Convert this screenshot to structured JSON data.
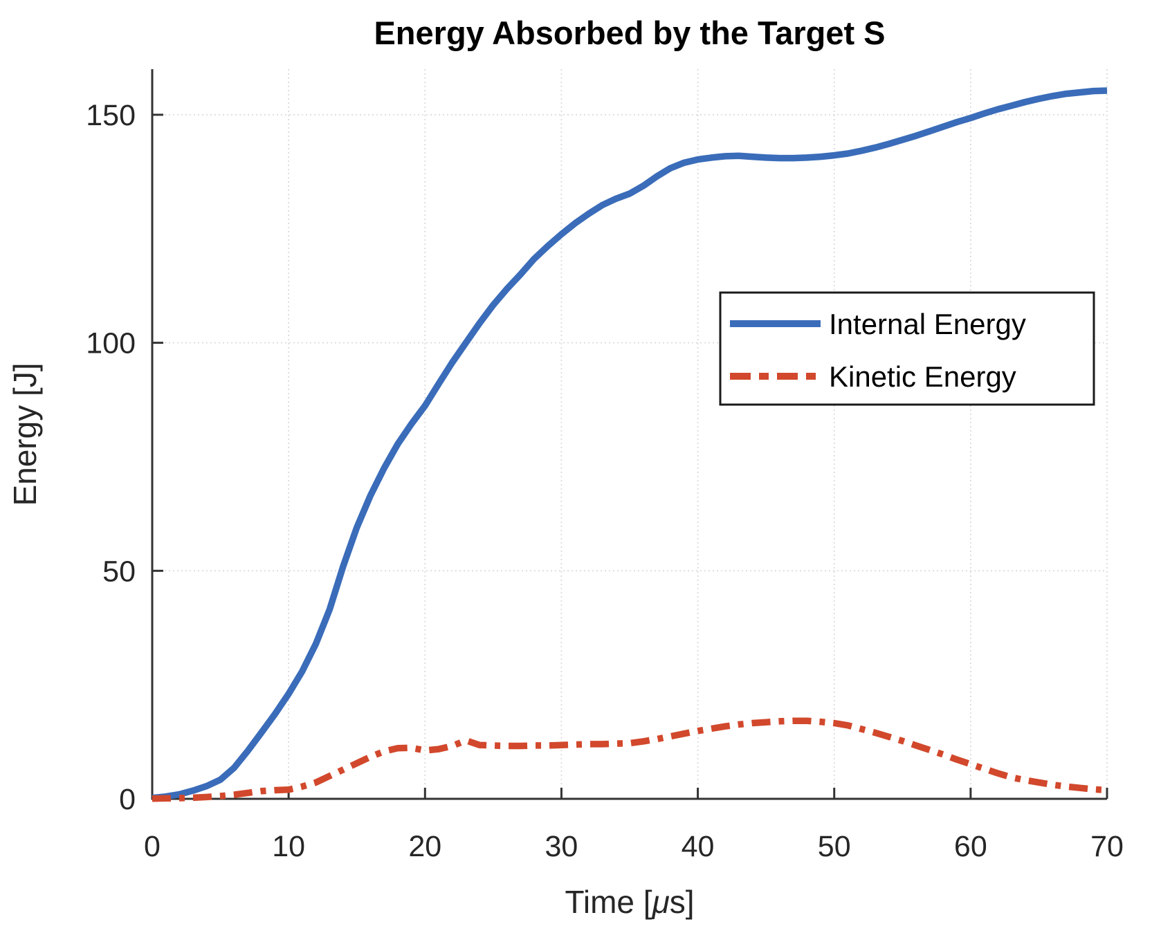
{
  "chart_data": {
    "type": "line",
    "title": "Energy Absorbed by the Target S",
    "xlabel": "Time [μs]",
    "ylabel": "Energy [J]",
    "xlim": [
      0,
      70
    ],
    "ylim": [
      0,
      160
    ],
    "x_ticks": [
      0,
      10,
      20,
      30,
      40,
      50,
      60,
      70
    ],
    "y_ticks": [
      0,
      50,
      100,
      150
    ],
    "grid": true,
    "grid_style": "dotted",
    "legend_position": "middle-right",
    "colors": {
      "internal": "#3A6CB9",
      "kinetic": "#D2482C",
      "axis": "#333333",
      "grid": "#d6d6d6",
      "legend_border": "#1a1a1a"
    },
    "x": [
      0,
      1,
      2,
      3,
      4,
      5,
      6,
      7,
      8,
      9,
      10,
      11,
      12,
      13,
      14,
      15,
      16,
      17,
      18,
      19,
      20,
      21,
      22,
      23,
      24,
      25,
      26,
      27,
      28,
      29,
      30,
      31,
      32,
      33,
      34,
      35,
      36,
      37,
      38,
      39,
      40,
      41,
      42,
      43,
      44,
      45,
      46,
      47,
      48,
      49,
      50,
      51,
      52,
      53,
      54,
      55,
      56,
      57,
      58,
      59,
      60,
      61,
      62,
      63,
      64,
      65,
      66,
      67,
      68,
      69,
      70
    ],
    "series": [
      {
        "name": "Internal Energy",
        "style": "solid",
        "values": [
          0.2,
          0.5,
          1.0,
          1.8,
          2.8,
          4.2,
          6.8,
          10.5,
          14.5,
          18.6,
          23,
          28,
          34,
          41.5,
          51,
          59.5,
          66.5,
          72.5,
          77.8,
          82.2,
          86.2,
          91,
          95.7,
          100,
          104.3,
          108.3,
          111.8,
          115,
          118.4,
          121.2,
          123.8,
          126.2,
          128.3,
          130.2,
          131.6,
          132.7,
          134.4,
          136.5,
          138.3,
          139.5,
          140.2,
          140.6,
          140.9,
          141.0,
          140.8,
          140.6,
          140.5,
          140.5,
          140.6,
          140.8,
          141.1,
          141.5,
          142.1,
          142.8,
          143.6,
          144.5,
          145.4,
          146.4,
          147.4,
          148.4,
          149.3,
          150.3,
          151.2,
          152.0,
          152.8,
          153.5,
          154.1,
          154.6,
          154.9,
          155.2,
          155.3
        ]
      },
      {
        "name": "Kinetic Energy",
        "style": "dash-dot",
        "values": [
          0.05,
          0.1,
          0.15,
          0.25,
          0.4,
          0.6,
          0.9,
          1.3,
          1.7,
          1.9,
          2.0,
          2.7,
          3.6,
          5.0,
          6.4,
          7.8,
          9.2,
          10.4,
          11.1,
          11.2,
          10.6,
          10.9,
          11.6,
          12.8,
          11.8,
          11.7,
          11.6,
          11.6,
          11.7,
          11.7,
          11.8,
          11.9,
          12.0,
          12.0,
          12.1,
          12.2,
          12.6,
          13.1,
          13.7,
          14.3,
          14.9,
          15.4,
          15.9,
          16.3,
          16.6,
          16.8,
          17.0,
          17.1,
          17.1,
          16.9,
          16.6,
          16.1,
          15.3,
          14.5,
          13.6,
          12.7,
          11.7,
          10.7,
          9.7,
          8.6,
          7.6,
          6.6,
          5.6,
          4.7,
          4.1,
          3.6,
          3.1,
          2.7,
          2.4,
          2.1,
          1.9
        ]
      }
    ]
  }
}
